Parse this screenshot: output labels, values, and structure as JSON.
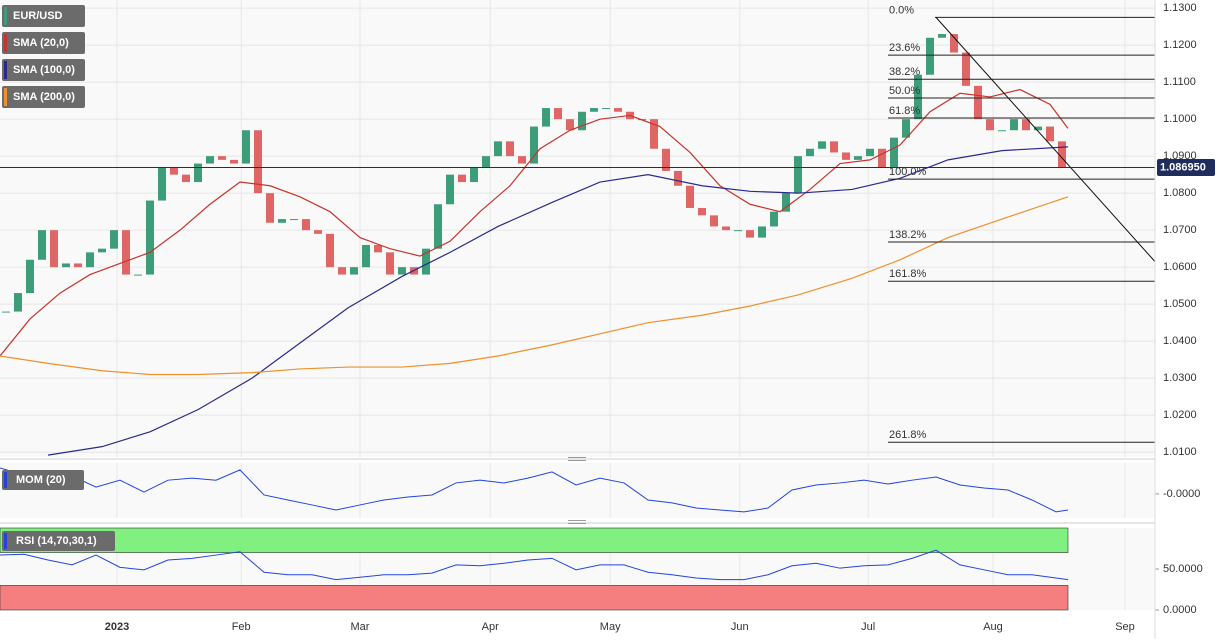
{
  "chart_data": [
    {
      "type": "candlestick",
      "title": "EUR/USD",
      "legend_color": "#3c9d78",
      "color_up": "#3c9d78",
      "color_down": "#e06666",
      "x": [
        1,
        3,
        5,
        7,
        9,
        11,
        13,
        15,
        17,
        19,
        21,
        23,
        25,
        27,
        29,
        31,
        33,
        35,
        37,
        39,
        41,
        43,
        45,
        47,
        49,
        51,
        53,
        55,
        57,
        59,
        61,
        63,
        65,
        67,
        69,
        71,
        73,
        75,
        77,
        79,
        81,
        83,
        85,
        87,
        89,
        91,
        93,
        95,
        97,
        99,
        101,
        103,
        105,
        107,
        109,
        111,
        113,
        115,
        117,
        119,
        121,
        123,
        125,
        127,
        129,
        131,
        133,
        135,
        137,
        139,
        141,
        143,
        145,
        147,
        149,
        151,
        153,
        155,
        157,
        159,
        161,
        163,
        165,
        167,
        169,
        171,
        173,
        175,
        177
      ],
      "values": [
        1.048,
        1.053,
        1.062,
        1.07,
        1.06,
        1.061,
        1.06,
        1.064,
        1.065,
        1.07,
        1.058,
        1.058,
        1.078,
        1.087,
        1.085,
        1.083,
        1.088,
        1.09,
        1.089,
        1.088,
        1.097,
        1.08,
        1.072,
        1.073,
        1.073,
        1.07,
        1.069,
        1.06,
        1.058,
        1.06,
        1.066,
        1.064,
        1.058,
        1.06,
        1.058,
        1.065,
        1.077,
        1.085,
        1.083,
        1.087,
        1.09,
        1.094,
        1.09,
        1.088,
        1.098,
        1.103,
        1.1,
        1.097,
        1.102,
        1.103,
        1.103,
        1.102,
        1.1,
        1.1,
        1.092,
        1.086,
        1.082,
        1.076,
        1.074,
        1.071,
        1.07,
        1.07,
        1.068,
        1.071,
        1.075,
        1.08,
        1.09,
        1.092,
        1.094,
        1.091,
        1.089,
        1.09,
        1.092,
        1.087,
        1.095,
        1.1,
        1.112,
        1.122,
        1.123,
        1.118,
        1.109,
        1.1,
        1.097,
        1.097,
        1.1,
        1.097,
        1.098,
        1.094,
        1.087
      ],
      "xlim": [
        0,
        192.5
      ],
      "ylim": [
        1.0087,
        1.1322
      ],
      "yticks": [
        {
          "value": 1.13,
          "label": "1.1300"
        },
        {
          "value": 1.12,
          "label": "1.1200"
        },
        {
          "value": 1.11,
          "label": "1.1100"
        },
        {
          "value": 1.1,
          "label": "1.1000"
        },
        {
          "value": 1.09,
          "label": "1.0900"
        },
        {
          "value": 1.08,
          "label": "1.0800"
        },
        {
          "value": 1.07,
          "label": "1.0700"
        },
        {
          "value": 1.06,
          "label": "1.0600"
        },
        {
          "value": 1.05,
          "label": "1.0500"
        },
        {
          "value": 1.04,
          "label": "1.0400"
        },
        {
          "value": 1.03,
          "label": "1.0300"
        },
        {
          "value": 1.02,
          "label": "1.0200"
        },
        {
          "value": 1.01,
          "label": "1.0100"
        }
      ],
      "xticks": [
        {
          "value": 19.5,
          "label": "2023"
        },
        {
          "value": 40.2,
          "label": "Feb"
        },
        {
          "value": 60,
          "label": "Mar"
        },
        {
          "value": 81.7,
          "label": "Apr"
        },
        {
          "value": 101.7,
          "label": "May"
        },
        {
          "value": 123.3,
          "label": "Jun"
        },
        {
          "value": 144.7,
          "label": "Jul"
        },
        {
          "value": 165.5,
          "label": "Aug"
        },
        {
          "value": 187.5,
          "label": "Sep"
        }
      ],
      "series": [
        {
          "name": "SMA (20,0)",
          "color": "#c8332b",
          "x": [
            0,
            5,
            10,
            15,
            20,
            25,
            30,
            35,
            40,
            45,
            50,
            55,
            60,
            65,
            70,
            75,
            80,
            85,
            90,
            95,
            100,
            105,
            110,
            115,
            120,
            125,
            130,
            135,
            140,
            145,
            150,
            155,
            160,
            165,
            170,
            175,
            178
          ],
          "values": [
            1.036,
            1.046,
            1.053,
            1.058,
            1.061,
            1.064,
            1.07,
            1.077,
            1.083,
            1.082,
            1.079,
            1.075,
            1.068,
            1.065,
            1.063,
            1.067,
            1.075,
            1.082,
            1.092,
            1.097,
            1.1,
            1.101,
            1.098,
            1.091,
            1.082,
            1.077,
            1.075,
            1.081,
            1.088,
            1.089,
            1.093,
            1.102,
            1.107,
            1.106,
            1.108,
            1.104,
            1.0975
          ]
        },
        {
          "name": "SMA (100,0)",
          "color": "#2a2a8c",
          "x": [
            8,
            17,
            25,
            33,
            42,
            50,
            58,
            67,
            75,
            83,
            92,
            100,
            108,
            117,
            125,
            133,
            142,
            150,
            158,
            167,
            178
          ],
          "values": [
            1.0092,
            1.0115,
            1.0155,
            1.0215,
            1.03,
            1.0395,
            1.049,
            1.0575,
            1.064,
            1.071,
            1.0775,
            1.083,
            1.085,
            1.082,
            1.0805,
            1.08,
            1.081,
            1.084,
            1.089,
            1.0915,
            1.0925
          ]
        },
        {
          "name": "SMA (200,0)",
          "color": "#f0902a",
          "x": [
            0,
            8,
            17,
            25,
            33,
            42,
            50,
            58,
            67,
            75,
            83,
            92,
            100,
            108,
            117,
            125,
            133,
            142,
            150,
            158,
            167,
            178
          ],
          "values": [
            1.036,
            1.034,
            1.032,
            1.031,
            1.031,
            1.0315,
            1.0325,
            1.033,
            1.033,
            1.034,
            1.036,
            1.039,
            1.042,
            1.045,
            1.047,
            1.0495,
            1.0525,
            1.057,
            1.062,
            1.068,
            1.073,
            1.079
          ]
        }
      ],
      "last_price": {
        "value": 1.08695,
        "label": "1.086950"
      },
      "fibonacci": [
        {
          "label": "0.0%",
          "value": 1.1275
        },
        {
          "label": "23.6%",
          "value": 1.1173
        },
        {
          "label": "38.2%",
          "value": 1.1108
        },
        {
          "label": "50.0%",
          "value": 1.1057
        },
        {
          "label": "61.8%",
          "value": 1.1003
        },
        {
          "label": "100.0%",
          "value": 1.0838
        },
        {
          "label": "138.2%",
          "value": 1.0668
        },
        {
          "label": "161.8%",
          "value": 1.0562
        },
        {
          "label": "261.8%",
          "value": 1.0127
        }
      ],
      "trendline": {
        "x": [
          156,
          192.5
        ],
        "values": [
          1.1275,
          1.0615
        ]
      }
    },
    {
      "type": "line",
      "title": "MOM (20)",
      "color": "#2244dd",
      "x": [
        0,
        4,
        8,
        12,
        16,
        20,
        24,
        28,
        32,
        36,
        40,
        44,
        48,
        52,
        56,
        60,
        64,
        68,
        72,
        76,
        80,
        84,
        88,
        92,
        96,
        100,
        104,
        108,
        112,
        116,
        120,
        124,
        128,
        132,
        136,
        140,
        144,
        148,
        152,
        156,
        160,
        164,
        168,
        172,
        176,
        178
      ],
      "values": [
        0.0377,
        0.0275,
        0.0203,
        0.026,
        0.01,
        0.02,
        0.0028,
        0.02,
        0.023,
        0.02,
        0.035,
        -0.0015,
        -0.0088,
        -0.016,
        -0.0234,
        -0.016,
        -0.0088,
        -0.0045,
        -0.0015,
        0.016,
        0.02,
        0.016,
        0.023,
        0.032,
        0.013,
        0.023,
        0.016,
        -0.0088,
        -0.013,
        -0.0205,
        -0.0234,
        -0.026,
        -0.0205,
        0.0057,
        0.013,
        0.016,
        0.02,
        0.0145,
        0.02,
        0.0246,
        0.013,
        0.0086,
        0.0057,
        -0.0088,
        -0.026,
        -0.0234
      ],
      "ylim": [
        -0.035,
        0.045
      ],
      "yticks": [
        {
          "value": 0,
          "label": "-0.0000"
        }
      ]
    },
    {
      "type": "line",
      "title": "RSI (14,70,30,1)",
      "color": "#2244dd",
      "x": [
        0,
        4,
        8,
        12,
        16,
        20,
        24,
        28,
        32,
        36,
        40,
        44,
        48,
        52,
        56,
        60,
        64,
        68,
        72,
        76,
        80,
        84,
        88,
        92,
        96,
        100,
        104,
        108,
        112,
        116,
        120,
        124,
        128,
        132,
        136,
        140,
        144,
        148,
        152,
        156,
        160,
        164,
        168,
        172,
        176,
        178
      ],
      "values": [
        67,
        68,
        61,
        55,
        67,
        52,
        49,
        61,
        63,
        67,
        71,
        46,
        43,
        43,
        37,
        40,
        43,
        43,
        45,
        55,
        54,
        57,
        61,
        63,
        49,
        55,
        55,
        46,
        43,
        39,
        37,
        37,
        43,
        54,
        57,
        51,
        54,
        55,
        63,
        73,
        55,
        49,
        43,
        43,
        39,
        37
      ],
      "ylim": [
        0,
        100
      ],
      "yticks": [
        {
          "value": 50,
          "label": "50.0000"
        },
        {
          "value": 0,
          "label": "0.0000"
        }
      ],
      "bands": [
        {
          "from": 70,
          "to": 100,
          "color": "#80f080"
        },
        {
          "from": 0,
          "to": 30,
          "color": "#f57f7f"
        }
      ]
    }
  ]
}
